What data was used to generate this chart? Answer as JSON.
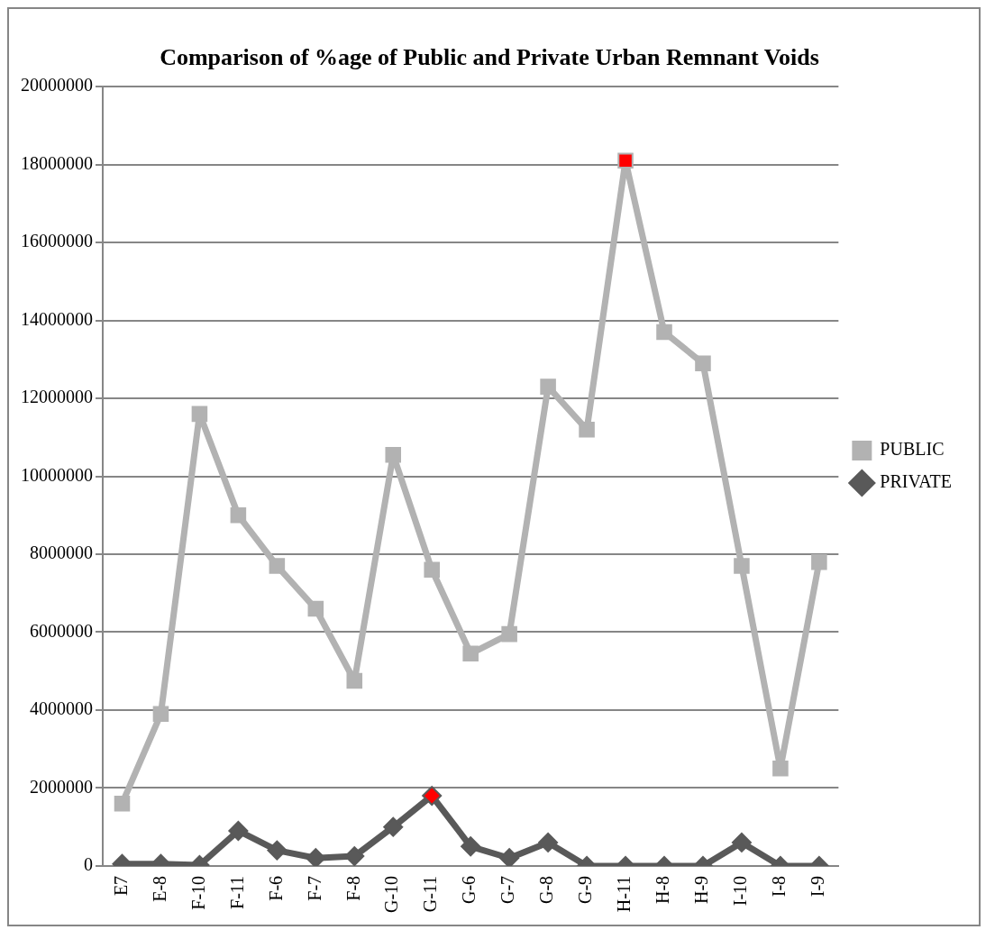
{
  "chart_data": {
    "type": "line",
    "title": "Comparison of %age of Public and Private Urban Remnant Voids",
    "categories": [
      "E7",
      "E-8",
      "F-10",
      "F-11",
      "F-6",
      "F-7",
      "F-8",
      "G-10",
      "G-11",
      "G-6",
      "G-7",
      "G-8",
      "G-9",
      "H-11",
      "H-8",
      "H-9",
      "I-10",
      "I-8",
      "I-9"
    ],
    "series": [
      {
        "name": "PUBLIC",
        "color": "#b2b2b2",
        "marker": "square",
        "colors": [
          "#b2b2b2",
          "#b2b2b2",
          "#b2b2b2",
          "#b2b2b2",
          "#b2b2b2",
          "#b2b2b2",
          "#b2b2b2",
          "#b2b2b2",
          "#b2b2b2",
          "#b2b2b2",
          "#b2b2b2",
          "#b2b2b2",
          "#b2b2b2",
          "#ff0000",
          "#b2b2b2",
          "#b2b2b2",
          "#b2b2b2",
          "#b2b2b2",
          "#b2b2b2"
        ],
        "values": [
          1600000,
          3900000,
          11600000,
          9000000,
          7700000,
          6600000,
          4750000,
          10550000,
          7600000,
          5450000,
          5950000,
          12300000,
          11200000,
          18100000,
          13700000,
          12900000,
          7700000,
          2500000,
          7800000
        ]
      },
      {
        "name": "PRIVATE",
        "color": "#595959",
        "marker": "diamond",
        "colors": [
          "#595959",
          "#595959",
          "#595959",
          "#595959",
          "#595959",
          "#595959",
          "#595959",
          "#595959",
          "#ff0000",
          "#595959",
          "#595959",
          "#595959",
          "#595959",
          "#595959",
          "#595959",
          "#595959",
          "#595959",
          "#595959",
          "#595959"
        ],
        "values": [
          50000,
          50000,
          20000,
          900000,
          400000,
          200000,
          250000,
          1000000,
          1800000,
          500000,
          200000,
          600000,
          0,
          0,
          0,
          0,
          600000,
          0,
          0
        ]
      }
    ],
    "ylim": [
      0,
      20000000
    ],
    "yticks": [
      0,
      2000000,
      4000000,
      6000000,
      8000000,
      10000000,
      12000000,
      14000000,
      16000000,
      18000000,
      20000000
    ],
    "grid": "y",
    "legend": "right"
  }
}
